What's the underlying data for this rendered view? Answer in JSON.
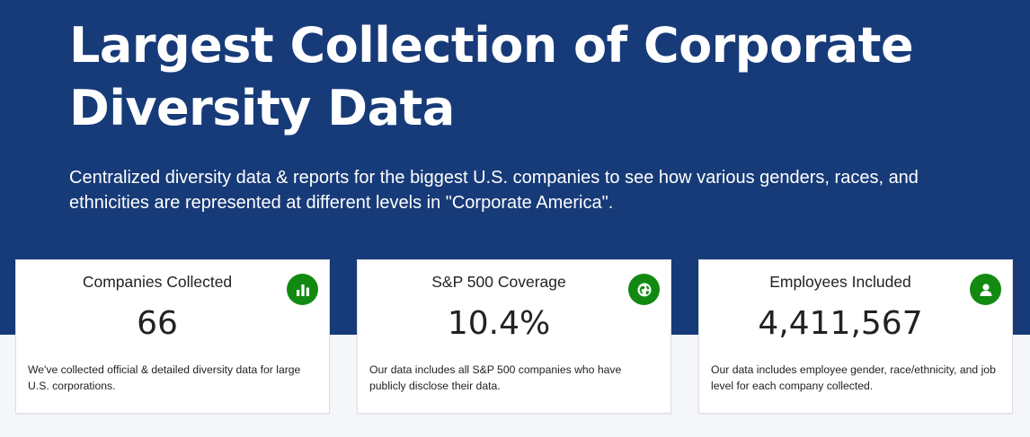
{
  "hero": {
    "title": "Largest Collection of Corporate Diversity Data",
    "subtitle": "Centralized diversity data & reports for the biggest U.S. companies to see how various genders, races, and ethnicities are represented at different levels in \"Corporate America\"."
  },
  "colors": {
    "hero_background": "#173b78",
    "icon_background": "#128a12",
    "page_background": "#f4f6fa"
  },
  "cards": [
    {
      "label": "Companies Collected",
      "value": "66",
      "description": "We've collected official & detailed diversity data for large U.S. corporations.",
      "icon": "bar-chart-icon"
    },
    {
      "label": "S&P 500 Coverage",
      "value": "10.4%",
      "description": "Our data includes all S&P 500 companies who have publicly disclose their data.",
      "icon": "globe-icon"
    },
    {
      "label": "Employees Included",
      "value": "4,411,567",
      "description": "Our data includes employee gender, race/ethnicity, and job level for each company collected.",
      "icon": "user-icon"
    }
  ]
}
